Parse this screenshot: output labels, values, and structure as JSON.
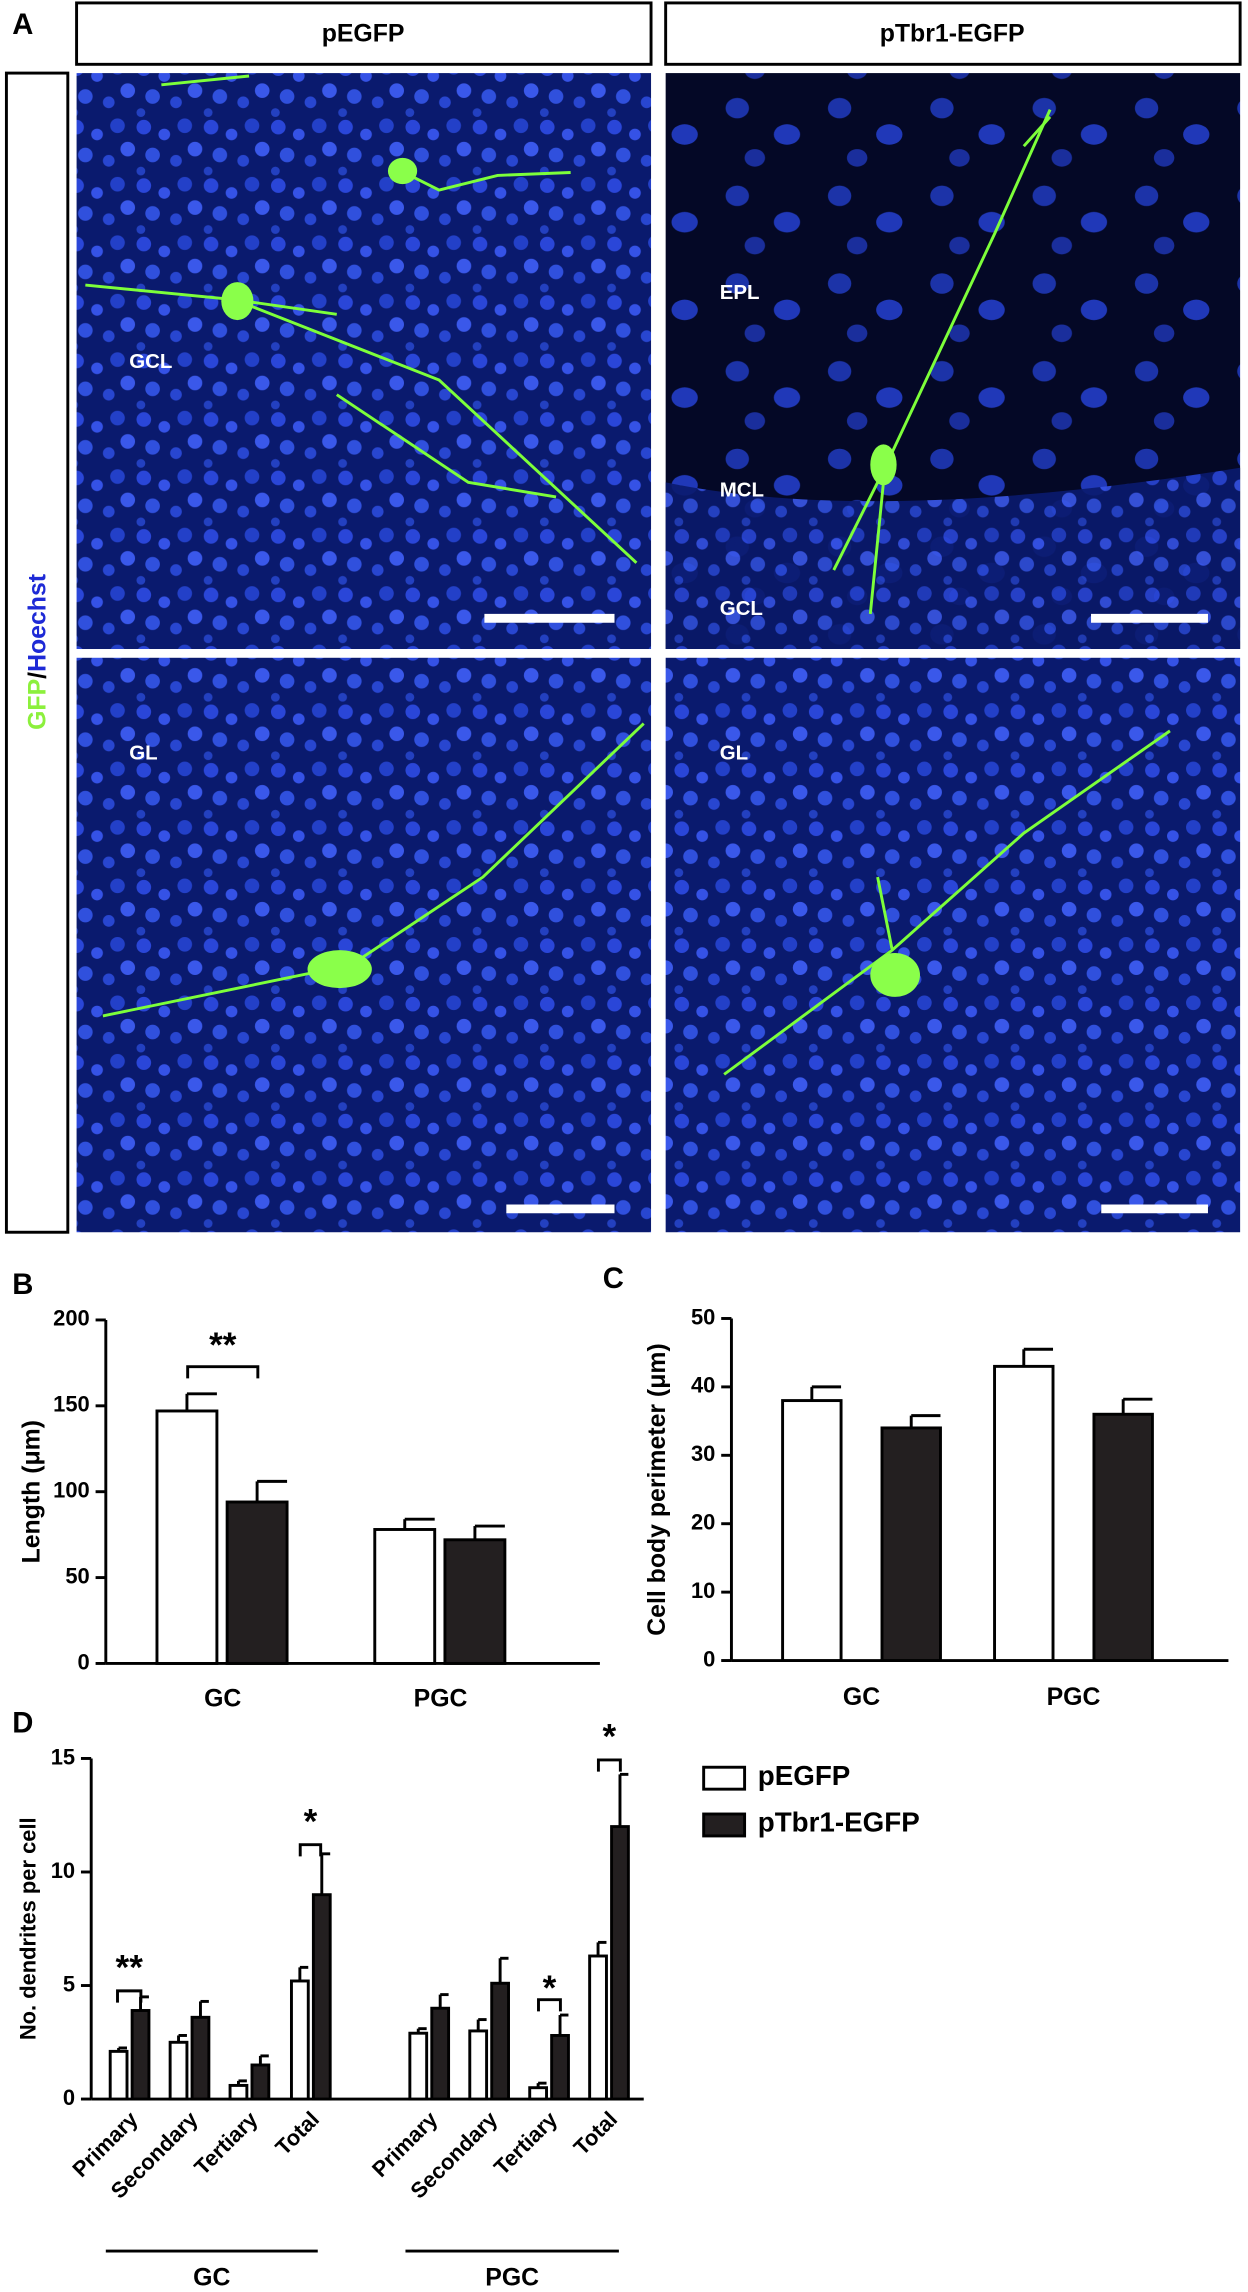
{
  "panel_letters": [
    "A",
    "B",
    "C",
    "D"
  ],
  "panel_a": {
    "headers": [
      "pEGFP",
      "pTbr1-EGFP"
    ],
    "side_label": [
      "GFP",
      "/",
      "Hoechst"
    ],
    "image_labels": {
      "top_left": [
        "GCL"
      ],
      "top_right": [
        "EPL",
        "MCL",
        "GCL"
      ],
      "bottom_left": [
        "GL"
      ],
      "bottom_right": [
        "GL"
      ]
    }
  },
  "chart_data": [
    {
      "type": "bar",
      "y_label": "Length (μm)",
      "categories": [
        "GC",
        "PGC"
      ],
      "series": [
        {
          "name": "pEGFP",
          "color": "#ffffff",
          "values": [
            147,
            78
          ],
          "errors": [
            10,
            6
          ]
        },
        {
          "name": "pTbr1-EGFP",
          "color": "#231f20",
          "values": [
            94,
            72
          ],
          "errors": [
            12,
            8
          ]
        }
      ],
      "ylim": [
        0,
        200
      ],
      "yticks": [
        0,
        50,
        100,
        150,
        200
      ],
      "annotations": [
        "**"
      ]
    },
    {
      "type": "bar",
      "y_label": "Cell body perimeter (μm)",
      "categories": [
        "GC",
        "PGC"
      ],
      "series": [
        {
          "name": "pEGFP",
          "color": "#ffffff",
          "values": [
            38,
            43
          ],
          "errors": [
            2,
            2.5
          ]
        },
        {
          "name": "pTbr1-EGFP",
          "color": "#231f20",
          "values": [
            34,
            36
          ],
          "errors": [
            1.8,
            2.2
          ]
        }
      ],
      "ylim": [
        0,
        50
      ],
      "yticks": [
        0,
        10,
        20,
        30,
        40,
        50
      ]
    },
    {
      "type": "bar",
      "y_label": "No. dendrites per cell",
      "categories": [
        "Primary",
        "Secondary",
        "Tertiary",
        "Total",
        "Primary",
        "Secondary",
        "Tertiary",
        "Total"
      ],
      "groups": [
        "GC",
        "PGC"
      ],
      "series": [
        {
          "name": "pEGFP",
          "color": "#ffffff",
          "values": [
            2.1,
            2.5,
            0.6,
            5.2,
            2.9,
            3.0,
            0.5,
            6.3
          ],
          "errors": [
            0.15,
            0.3,
            0.2,
            0.6,
            0.2,
            0.5,
            0.2,
            0.6
          ]
        },
        {
          "name": "pTbr1-EGFP",
          "color": "#231f20",
          "values": [
            3.9,
            3.6,
            1.5,
            9.0,
            4.0,
            5.1,
            2.8,
            12.0
          ],
          "errors": [
            0.6,
            0.7,
            0.4,
            1.8,
            0.6,
            1.1,
            0.9,
            2.3
          ]
        }
      ],
      "ylim": [
        0,
        15
      ],
      "yticks": [
        0,
        5,
        10,
        15
      ],
      "annotations": [
        "**",
        "*",
        "*",
        "*"
      ],
      "legend": true
    }
  ]
}
